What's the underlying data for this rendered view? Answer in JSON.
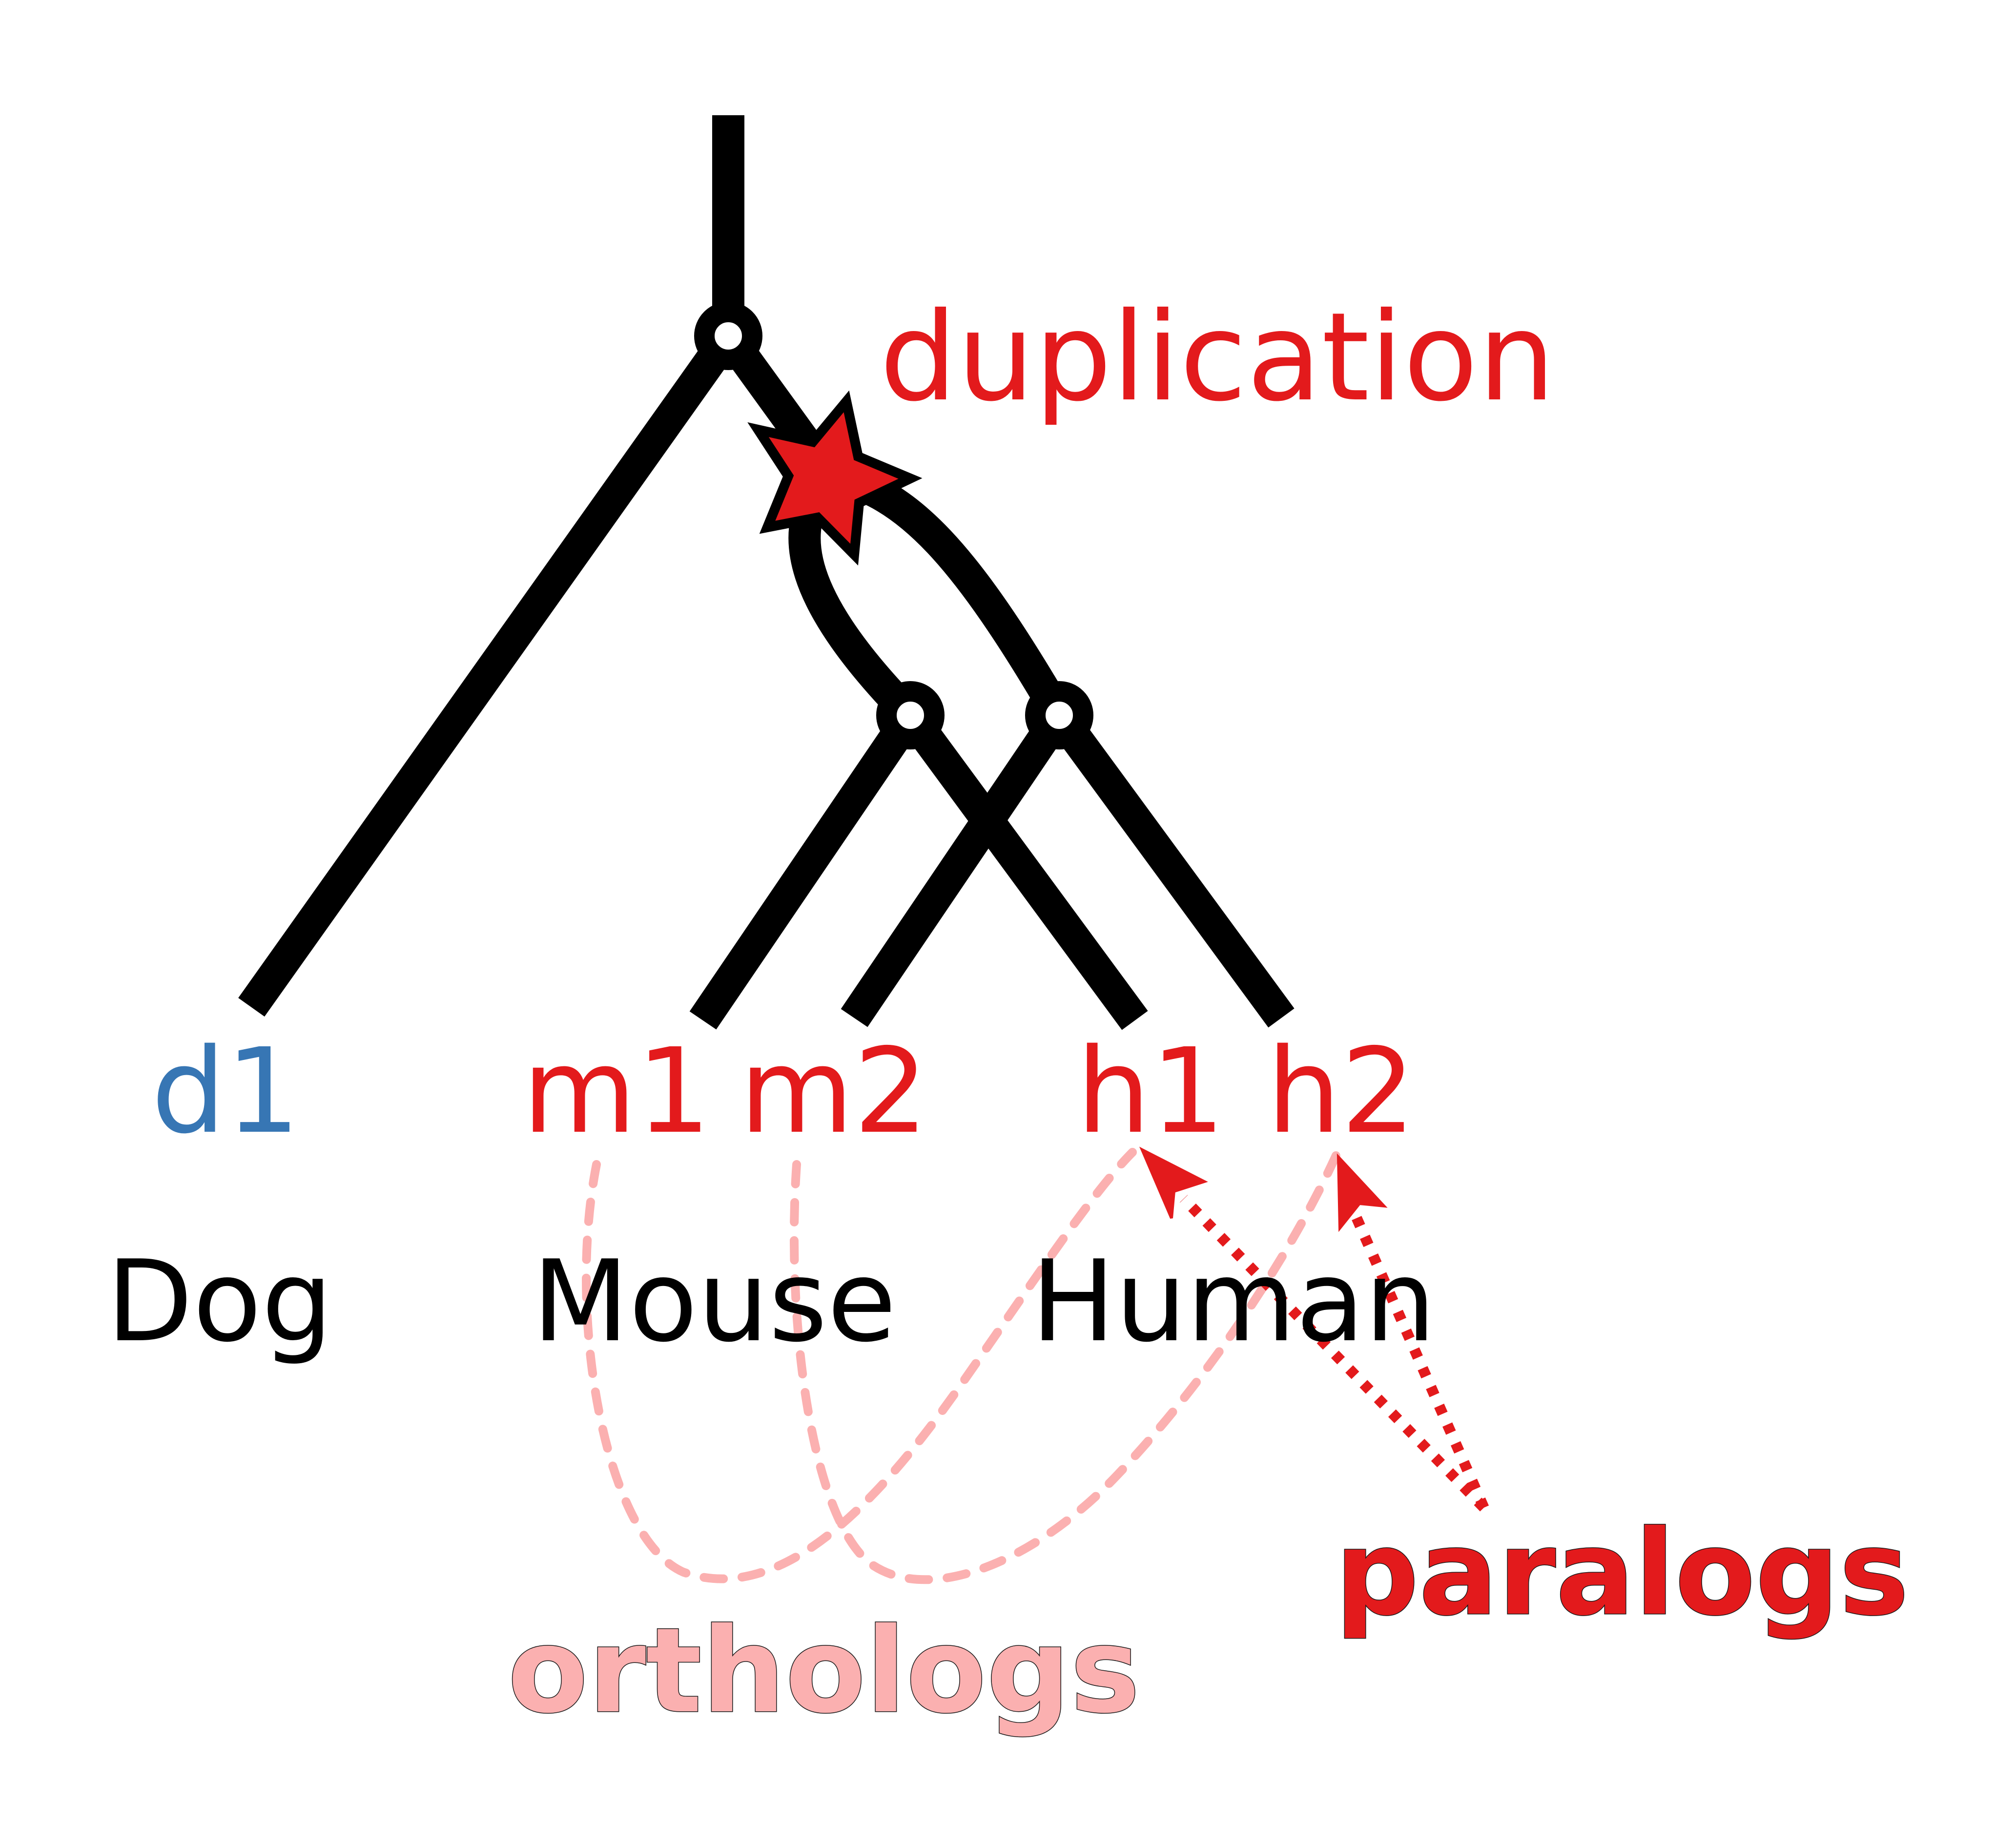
{
  "event": {
    "label": "duplication",
    "color": "#e31a1c",
    "marker": "star-icon"
  },
  "genes": [
    {
      "id": "d1",
      "label": "d1",
      "color": "#3776b4"
    },
    {
      "id": "m1",
      "label": "m1",
      "color": "#e31a1c"
    },
    {
      "id": "m2",
      "label": "m2",
      "color": "#e31a1c"
    },
    {
      "id": "h1",
      "label": "h1",
      "color": "#e31a1c"
    },
    {
      "id": "h2",
      "label": "h2",
      "color": "#e31a1c"
    }
  ],
  "species": [
    {
      "id": "dog",
      "label": "Dog"
    },
    {
      "id": "mouse",
      "label": "Mouse"
    },
    {
      "id": "human",
      "label": "Human"
    }
  ],
  "relations": {
    "orthologs": {
      "label": "orthologs",
      "color": "#fbb0b0",
      "pairs": [
        [
          "m1",
          "h1"
        ],
        [
          "m2",
          "h2"
        ]
      ]
    },
    "paralogs": {
      "label": "paralogs",
      "color": "#e31a1c",
      "pairs": [
        [
          "h1",
          "h2"
        ]
      ]
    }
  },
  "colors": {
    "tree": "#000000",
    "node_fill": "#ffffff"
  }
}
